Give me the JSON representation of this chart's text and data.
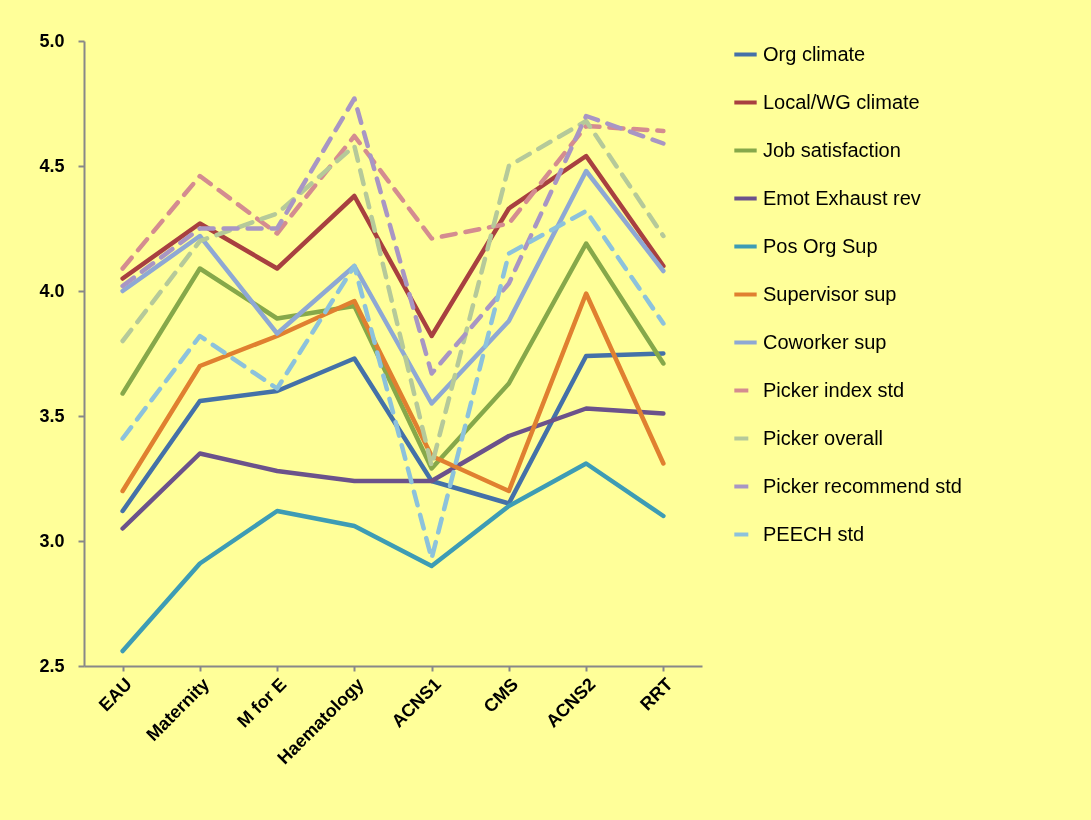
{
  "chart_data": {
    "type": "line",
    "categories": [
      "EAU",
      "Maternity",
      "M for E",
      "Haematology",
      "ACNS1",
      "CMS",
      "ACNS2",
      "RRT"
    ],
    "ylim": [
      2.5,
      5.0
    ],
    "yticks": [
      2.5,
      {
        "value": 3,
        "label": "3.0"
      },
      3.5,
      {
        "value": 4,
        "label": "4.0"
      },
      4.5,
      {
        "value": 5,
        "label": "5.0"
      }
    ],
    "grid": false,
    "legend": "right",
    "marker": "none",
    "series": [
      {
        "name": "Org climate",
        "color": "#4471a8",
        "line_style": "solid",
        "values": [
          3.12,
          3.56,
          3.6,
          3.73,
          3.24,
          3.15,
          3.74,
          3.75
        ]
      },
      {
        "name": "Local/WG climate",
        "color": "#a84040",
        "line_style": "solid",
        "values": [
          4.05,
          4.27,
          4.09,
          4.38,
          3.82,
          4.33,
          4.54,
          4.1
        ]
      },
      {
        "name": "Job satisfaction",
        "color": "#86a84a",
        "line_style": "solid",
        "values": [
          3.59,
          4.09,
          3.89,
          3.94,
          3.29,
          3.63,
          4.19,
          3.71
        ]
      },
      {
        "name": "Emot Exhaust rev",
        "color": "#6b528b",
        "line_style": "solid",
        "values": [
          3.05,
          3.35,
          3.28,
          3.24,
          3.24,
          3.42,
          3.53,
          3.51
        ]
      },
      {
        "name": "Pos Org Sup",
        "color": "#3d9cb5",
        "line_style": "solid",
        "values": [
          2.56,
          2.91,
          3.12,
          3.06,
          2.9,
          3.14,
          3.31,
          3.1
        ]
      },
      {
        "name": "Supervisor sup",
        "color": "#e08030",
        "line_style": "solid",
        "values": [
          3.2,
          3.7,
          3.82,
          3.96,
          3.34,
          3.2,
          3.99,
          3.31
        ]
      },
      {
        "name": "Coworker sup",
        "color": "#8ea8d4",
        "line_style": "solid",
        "values": [
          4.0,
          4.22,
          3.83,
          4.1,
          3.55,
          3.88,
          4.48,
          4.08
        ]
      },
      {
        "name": "Picker index std",
        "color": "#d48c90",
        "line_style": "dashed",
        "values": [
          4.09,
          4.46,
          4.23,
          4.62,
          4.21,
          4.27,
          4.66,
          4.64
        ]
      },
      {
        "name": "Picker overall",
        "color": "#b5c99a",
        "line_style": "dashed",
        "values": [
          3.8,
          4.2,
          4.31,
          4.58,
          3.3,
          4.5,
          4.68,
          4.22
        ]
      },
      {
        "name": "Picker recommend std",
        "color": "#a896c4",
        "line_style": "dashed",
        "values": [
          4.02,
          4.25,
          4.25,
          4.77,
          3.67,
          4.03,
          4.7,
          4.59
        ]
      },
      {
        "name": "PEECH std",
        "color": "#8cc2dc",
        "line_style": "dashed",
        "values": [
          3.41,
          3.82,
          3.61,
          4.1,
          2.93,
          4.15,
          4.32,
          3.87
        ]
      }
    ]
  }
}
